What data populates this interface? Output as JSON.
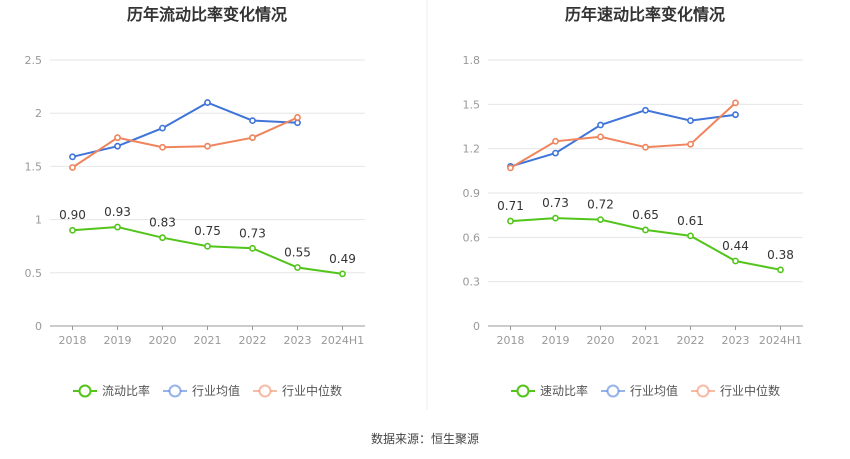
{
  "source": "数据来源：恒生聚源",
  "colors": {
    "main": "#52c41a",
    "avg": "#3f74d8",
    "median": "#f0845c"
  },
  "chart_data": [
    {
      "type": "line",
      "title": "历年流动比率变化情况",
      "categories": [
        "2018",
        "2019",
        "2020",
        "2021",
        "2022",
        "2023",
        "2024H1"
      ],
      "ylim": [
        0,
        2.5
      ],
      "yticks": [
        "0",
        "0.5",
        "1",
        "1.5",
        "2",
        "2.5"
      ],
      "ytick_values": [
        0,
        0.5,
        1,
        1.5,
        2,
        2.5
      ],
      "grid": true,
      "legend_position": "bottom",
      "series": [
        {
          "name": "流动比率",
          "values": [
            0.9,
            0.93,
            0.83,
            0.75,
            0.73,
            0.55,
            0.49
          ],
          "labels": [
            "0.90",
            "0.93",
            "0.83",
            "0.75",
            "0.73",
            "0.55",
            "0.49"
          ],
          "color": "#52c41a"
        },
        {
          "name": "行业均值",
          "values": [
            1.59,
            1.69,
            1.86,
            2.1,
            1.93,
            1.91,
            null
          ],
          "color": "#3f74d8"
        },
        {
          "name": "行业中位数",
          "values": [
            1.49,
            1.77,
            1.68,
            1.69,
            1.77,
            1.96,
            null
          ],
          "color": "#f0845c"
        }
      ]
    },
    {
      "type": "line",
      "title": "历年速动比率变化情况",
      "categories": [
        "2018",
        "2019",
        "2020",
        "2021",
        "2022",
        "2023",
        "2024H1"
      ],
      "ylim": [
        0,
        1.8
      ],
      "yticks": [
        "0",
        "0.3",
        "0.6",
        "0.9",
        "1.2",
        "1.5",
        "1.8"
      ],
      "ytick_values": [
        0,
        0.3,
        0.6,
        0.9,
        1.2,
        1.5,
        1.8
      ],
      "grid": true,
      "legend_position": "bottom",
      "series": [
        {
          "name": "速动比率",
          "values": [
            0.71,
            0.73,
            0.72,
            0.65,
            0.61,
            0.44,
            0.38
          ],
          "labels": [
            "0.71",
            "0.73",
            "0.72",
            "0.65",
            "0.61",
            "0.44",
            "0.38"
          ],
          "color": "#52c41a"
        },
        {
          "name": "行业均值",
          "values": [
            1.08,
            1.17,
            1.36,
            1.46,
            1.39,
            1.43,
            null
          ],
          "color": "#3f74d8"
        },
        {
          "name": "行业中位数",
          "values": [
            1.07,
            1.25,
            1.28,
            1.21,
            1.23,
            1.51,
            null
          ],
          "color": "#f0845c"
        }
      ]
    }
  ]
}
